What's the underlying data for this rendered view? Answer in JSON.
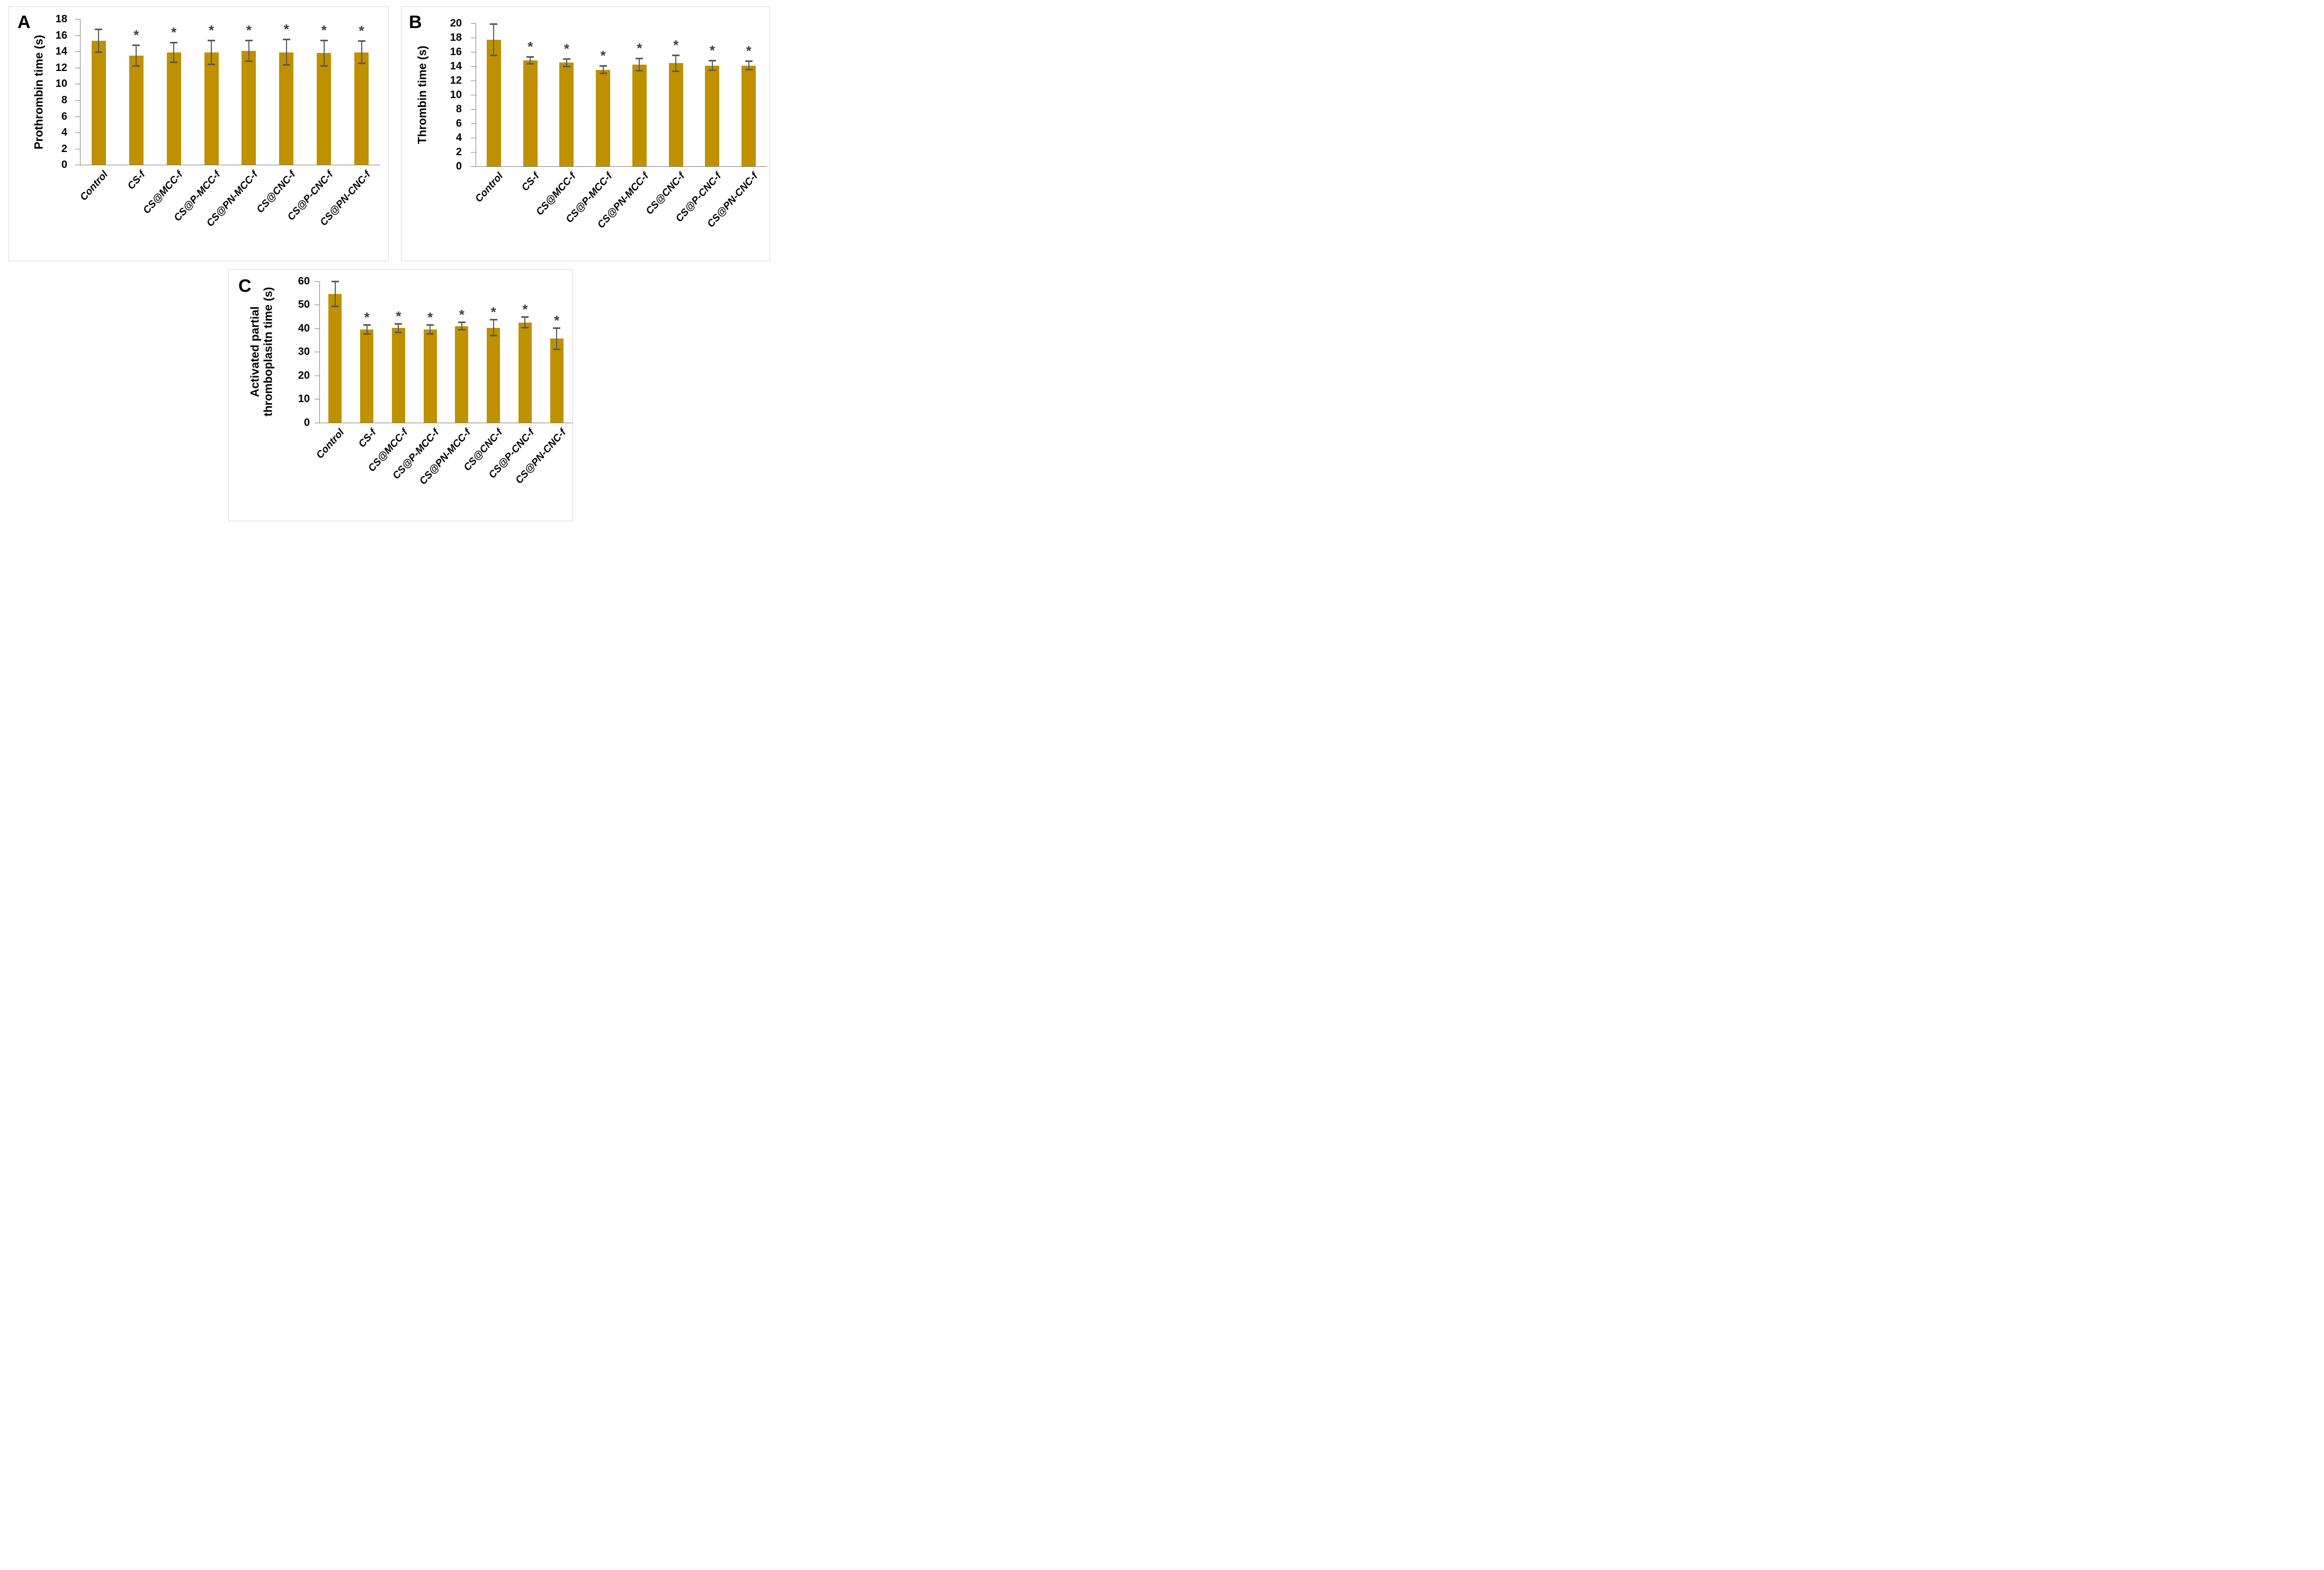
{
  "figure": {
    "background": "#ffffff",
    "description_visible_panels": [
      "A",
      "B",
      "C"
    ]
  },
  "colors": {
    "bar_fill": "#BF9000",
    "error_bar": "#595959",
    "axis_line": "#808080",
    "panel_border": "#D9D9D9",
    "text": "#000000",
    "asterisk": "#3F3F3F"
  },
  "chart_data": [
    {
      "type": "bar",
      "panel_label": "A",
      "ylabel": "Prothrombin time (s)",
      "ylabel_lines": [
        "Prothrombin time (s)"
      ],
      "xlabel": "",
      "ylim": [
        0,
        18
      ],
      "ytick_step": 2,
      "ytick_labels": [
        "0",
        "2",
        "4",
        "6",
        "8",
        "10",
        "12",
        "14",
        "16",
        "18"
      ],
      "grid": false,
      "legend": "none",
      "sig_marker": "*",
      "categories": [
        "Control",
        "CS-f",
        "CS@MCC-f",
        "CS@P-MCC-f",
        "CS@PN-MCC-f",
        "CS@CNC-f",
        "CS@P-CNC-f",
        "CS@PN-CNC-f"
      ],
      "values": [
        15.3,
        13.5,
        13.9,
        13.9,
        14.1,
        13.9,
        13.8,
        13.9
      ],
      "errors": [
        1.45,
        1.3,
        1.25,
        1.5,
        1.3,
        1.6,
        1.6,
        1.4
      ],
      "significant": [
        false,
        true,
        true,
        true,
        true,
        true,
        true,
        true
      ]
    },
    {
      "type": "bar",
      "panel_label": "B",
      "ylabel": "Thrombin time (s)",
      "ylabel_lines": [
        "Thrombin time (s)"
      ],
      "xlabel": "",
      "ylim": [
        0,
        20
      ],
      "ytick_step": 2,
      "ytick_labels": [
        "0",
        "2",
        "4",
        "6",
        "8",
        "10",
        "12",
        "14",
        "16",
        "18",
        "20"
      ],
      "grid": false,
      "legend": "none",
      "sig_marker": "*",
      "categories": [
        "Control",
        "CS-f",
        "CS@MCC-f",
        "CS@P-MCC-f",
        "CS@PN-MCC-f",
        "CS@CNC-f",
        "CS@P-CNC-f",
        "CS@PN-CNC-f"
      ],
      "values": [
        17.7,
        14.8,
        14.5,
        13.5,
        14.2,
        14.4,
        14.1,
        14.1
      ],
      "errors": [
        2.2,
        0.5,
        0.55,
        0.55,
        0.9,
        1.15,
        0.7,
        0.6
      ],
      "significant": [
        false,
        true,
        true,
        true,
        true,
        true,
        true,
        true
      ]
    },
    {
      "type": "bar",
      "panel_label": "C",
      "ylabel": "Activated partial thromboplasitn time (s)",
      "ylabel_lines": [
        "Activated partial",
        "thromboplasitn time (s)"
      ],
      "xlabel": "",
      "ylim": [
        0,
        60
      ],
      "ytick_step": 10,
      "ytick_labels": [
        "0",
        "10",
        "20",
        "30",
        "40",
        "50",
        "60"
      ],
      "grid": false,
      "legend": "none",
      "sig_marker": "*",
      "categories": [
        "Control",
        "CS-f",
        "CS@MCC-f",
        "CS@P-MCC-f",
        "CS@PN-MCC-f",
        "CS@CNC-f",
        "CS@P-CNC-f",
        "CS@PN-CNC-f"
      ],
      "values": [
        54.6,
        39.6,
        40.1,
        39.5,
        40.9,
        40.3,
        42.5,
        35.6
      ],
      "errors": [
        5.5,
        2.0,
        1.9,
        2.0,
        1.7,
        3.5,
        2.4,
        4.6
      ],
      "significant": [
        false,
        true,
        true,
        true,
        true,
        true,
        true,
        true
      ]
    }
  ]
}
